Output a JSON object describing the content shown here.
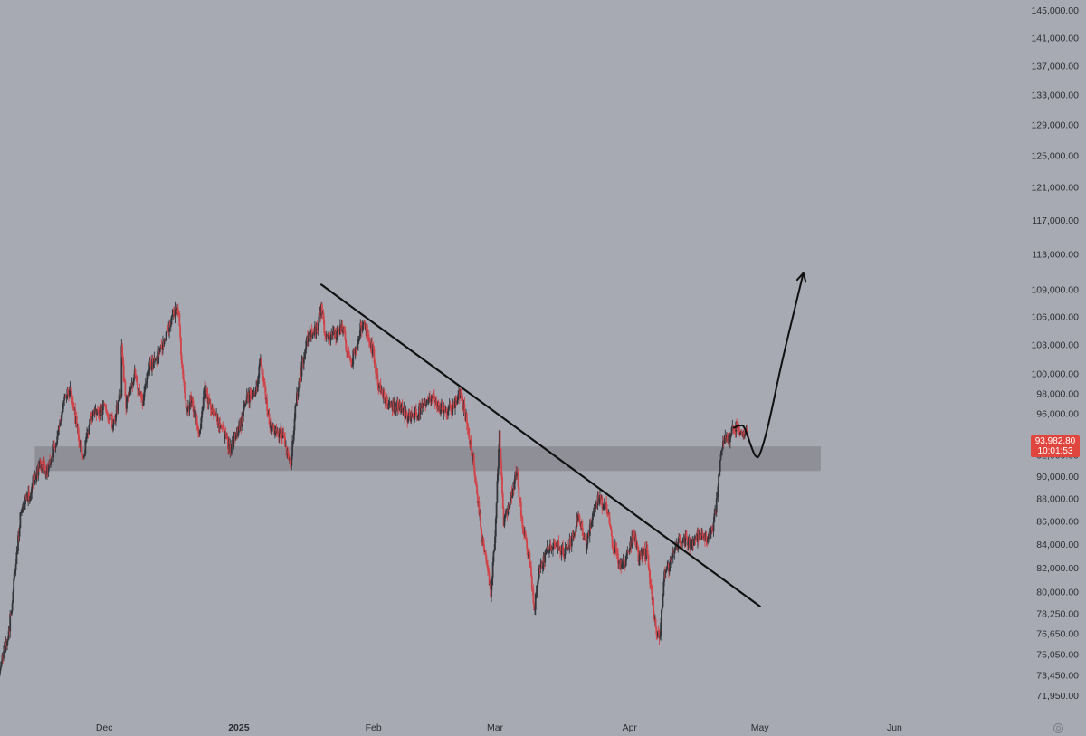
{
  "chart_data": {
    "type": "candlestick",
    "y_axis": {
      "tick_labels": [
        "145,000.00",
        "141,000.00",
        "137,000.00",
        "133,000.00",
        "129,000.00",
        "125,000.00",
        "121,000.00",
        "117,000.00",
        "113,000.00",
        "109,000.00",
        "106,000.00",
        "103,000.00",
        "100,000.00",
        "98,000.00",
        "96,000.00",
        "92,000.00",
        "90,000.00",
        "88,000.00",
        "86,000.00",
        "84,000.00",
        "82,000.00",
        "80,000.00",
        "78,250.00",
        "76,650.00",
        "75,050.00",
        "73,450.00",
        "71,950.00"
      ],
      "tick_values": [
        145000,
        141000,
        137000,
        133000,
        129000,
        125000,
        121000,
        117000,
        113000,
        109000,
        106000,
        103000,
        100000,
        98000,
        96000,
        92000,
        90000,
        88000,
        86000,
        84000,
        82000,
        80000,
        78250,
        76650,
        75050,
        73450,
        71950
      ],
      "scale": "log",
      "range": [
        70500,
        146500
      ]
    },
    "x_axis": {
      "tick_labels": [
        "Dec",
        "2025",
        "Feb",
        "Mar",
        "Apr",
        "May",
        "Jun"
      ],
      "tick_dates": [
        "2024-12-01",
        "2025-01-01",
        "2025-02-01",
        "2025-03-01",
        "2025-04-01",
        "2025-05-01",
        "2025-06-01"
      ],
      "bold_labels": [
        "2025"
      ],
      "range": [
        "2024-11-07",
        "2025-06-28"
      ]
    },
    "candles": {
      "interval": "4h",
      "colors": {
        "up": "#33353b",
        "down": "#d0444a"
      },
      "anchors": [
        [
          "2024-11-07",
          74000
        ],
        [
          "2024-11-09",
          76600
        ],
        [
          "2024-11-10",
          80000
        ],
        [
          "2024-11-12",
          87500
        ],
        [
          "2024-11-14",
          88500
        ],
        [
          "2024-11-16",
          91000
        ],
        [
          "2024-11-18",
          90500
        ],
        [
          "2024-11-20",
          93500
        ],
        [
          "2024-11-22",
          97500
        ],
        [
          "2024-11-23",
          98500
        ],
        [
          "2024-11-25",
          94000
        ],
        [
          "2024-11-26",
          91500
        ],
        [
          "2024-11-28",
          95800
        ],
        [
          "2024-12-01",
          96500
        ],
        [
          "2024-12-03",
          95000
        ],
        [
          "2024-12-05",
          98000
        ],
        [
          "2024-12-05",
          102500
        ],
        [
          "2024-12-06",
          97000
        ],
        [
          "2024-12-08",
          99800
        ],
        [
          "2024-12-10",
          97000
        ],
        [
          "2024-12-11",
          100500
        ],
        [
          "2024-12-13",
          101200
        ],
        [
          "2024-12-15",
          103500
        ],
        [
          "2024-12-17",
          106500
        ],
        [
          "2024-12-18",
          107000
        ],
        [
          "2024-12-19",
          100000
        ],
        [
          "2024-12-20",
          96000
        ],
        [
          "2024-12-21",
          97500
        ],
        [
          "2024-12-23",
          94000
        ],
        [
          "2024-12-24",
          98500
        ],
        [
          "2024-12-26",
          96000
        ],
        [
          "2024-12-28",
          94800
        ],
        [
          "2024-12-30",
          92500
        ],
        [
          "2025-01-01",
          94500
        ],
        [
          "2025-01-03",
          97500
        ],
        [
          "2025-01-05",
          98200
        ],
        [
          "2025-01-06",
          101500
        ],
        [
          "2025-01-08",
          95000
        ],
        [
          "2025-01-09",
          94500
        ],
        [
          "2025-01-11",
          94000
        ],
        [
          "2025-01-13",
          91000
        ],
        [
          "2025-01-14",
          96500
        ],
        [
          "2025-01-15",
          99500
        ],
        [
          "2025-01-17",
          104000
        ],
        [
          "2025-01-19",
          104500
        ],
        [
          "2025-01-20",
          107000
        ],
        [
          "2025-01-21",
          103500
        ],
        [
          "2025-01-23",
          104000
        ],
        [
          "2025-01-25",
          104800
        ],
        [
          "2025-01-26",
          102000
        ],
        [
          "2025-01-27",
          101200
        ],
        [
          "2025-01-29",
          104700
        ],
        [
          "2025-01-30",
          105000
        ],
        [
          "2025-02-01",
          102000
        ],
        [
          "2025-02-02",
          99000
        ],
        [
          "2025-02-03",
          97800
        ],
        [
          "2025-02-05",
          96500
        ],
        [
          "2025-02-07",
          96800
        ],
        [
          "2025-02-09",
          95500
        ],
        [
          "2025-02-11",
          96000
        ],
        [
          "2025-02-13",
          97000
        ],
        [
          "2025-02-15",
          97600
        ],
        [
          "2025-02-17",
          96000
        ],
        [
          "2025-02-19",
          96500
        ],
        [
          "2025-02-21",
          98000
        ],
        [
          "2025-02-22",
          96200
        ],
        [
          "2025-02-24",
          91500
        ],
        [
          "2025-02-25",
          88000
        ],
        [
          "2025-02-26",
          84500
        ],
        [
          "2025-02-28",
          80000
        ],
        [
          "2025-03-01",
          84500
        ],
        [
          "2025-03-02",
          94000
        ],
        [
          "2025-03-03",
          86000
        ],
        [
          "2025-03-04",
          87000
        ],
        [
          "2025-03-06",
          90500
        ],
        [
          "2025-03-07",
          86500
        ],
        [
          "2025-03-09",
          82500
        ],
        [
          "2025-03-10",
          78500
        ],
        [
          "2025-03-11",
          81500
        ],
        [
          "2025-03-13",
          83500
        ],
        [
          "2025-03-15",
          84000
        ],
        [
          "2025-03-17",
          83200
        ],
        [
          "2025-03-19",
          84500
        ],
        [
          "2025-03-20",
          86500
        ],
        [
          "2025-03-22",
          84000
        ],
        [
          "2025-03-24",
          87500
        ],
        [
          "2025-03-25",
          88000
        ],
        [
          "2025-03-27",
          87000
        ],
        [
          "2025-03-28",
          84000
        ],
        [
          "2025-03-30",
          82200
        ],
        [
          "2025-03-31",
          82500
        ],
        [
          "2025-04-02",
          85000
        ],
        [
          "2025-04-03",
          83000
        ],
        [
          "2025-04-05",
          83200
        ],
        [
          "2025-04-06",
          80000
        ],
        [
          "2025-04-07",
          77000
        ],
        [
          "2025-04-08",
          76500
        ],
        [
          "2025-04-09",
          81500
        ],
        [
          "2025-04-10",
          82000
        ],
        [
          "2025-04-11",
          83500
        ],
        [
          "2025-04-13",
          84500
        ],
        [
          "2025-04-15",
          84000
        ],
        [
          "2025-04-17",
          84500
        ],
        [
          "2025-04-19",
          84500
        ],
        [
          "2025-04-20",
          85000
        ],
        [
          "2025-04-21",
          87500
        ],
        [
          "2025-04-22",
          92000
        ],
        [
          "2025-04-23",
          93800
        ],
        [
          "2025-04-24",
          93500
        ],
        [
          "2025-04-25",
          94800
        ],
        [
          "2025-04-26",
          94500
        ],
        [
          "2025-04-27",
          93800
        ],
        [
          "2025-04-28",
          93983
        ]
      ]
    },
    "support_zone": {
      "low": 90500,
      "high": 92800,
      "from": "2024-11-15",
      "to": "2025-05-15",
      "color": "#8a8b92"
    },
    "trendline": {
      "from": [
        "2025-01-20",
        109500
      ],
      "to": [
        "2025-05-01",
        78800
      ]
    },
    "projection": {
      "points": [
        [
          "2025-04-25",
          94600
        ],
        [
          "2025-04-27",
          94800
        ],
        [
          "2025-04-28",
          94000
        ],
        [
          "2025-04-29",
          92800
        ],
        [
          "2025-04-30",
          91900
        ],
        [
          "2025-05-01",
          92100
        ],
        [
          "2025-05-03",
          95000
        ],
        [
          "2025-05-06",
          101000
        ],
        [
          "2025-05-09",
          106800
        ],
        [
          "2025-05-11",
          110800
        ]
      ]
    },
    "last_price": {
      "value": 93982.8,
      "label": "93,982.80",
      "countdown": "10:01:53",
      "color": "#e0463e"
    }
  }
}
